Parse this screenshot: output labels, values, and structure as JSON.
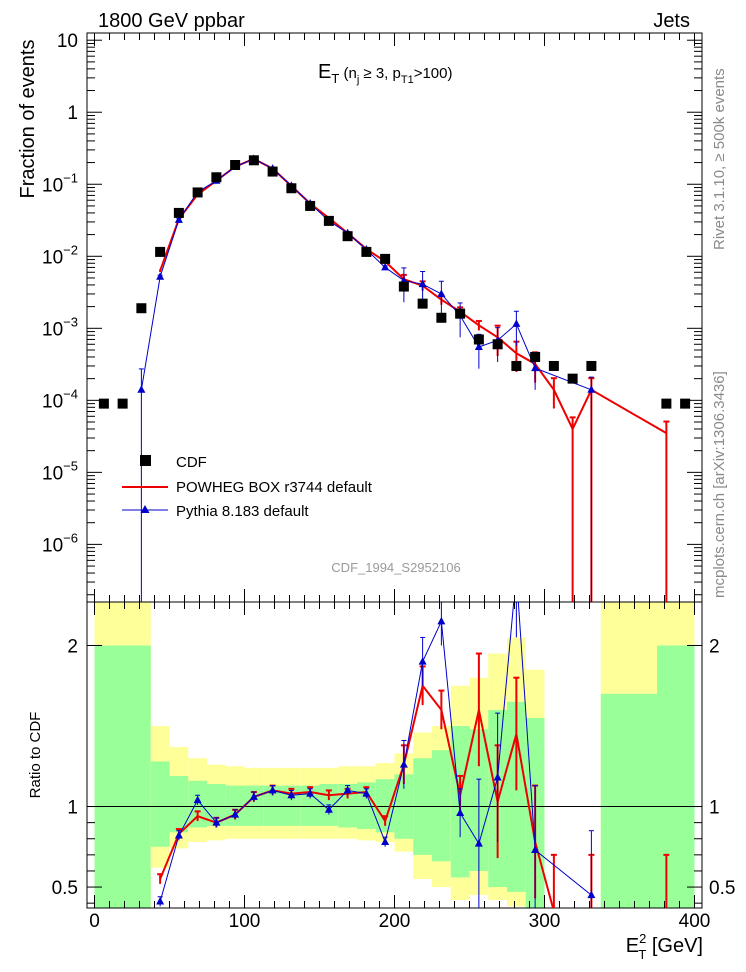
{
  "header": {
    "left": "1800 GeV ppbar",
    "right": "Jets"
  },
  "side_labels": {
    "rivet": "Rivet 3.1.10, ≥ 500k events",
    "mcplots": "mcplots.cern.ch [arXiv:1306.3436]"
  },
  "watermark": "CDF_1994_S2952106",
  "chart_data": [
    {
      "type": "scatter",
      "yscale": "log",
      "title": {
        "main": "E",
        "sub": "T",
        "cond": " (n",
        "cond_sub1": "j",
        "cond_mid": " ≥ 3, p",
        "cond_sub2": "T1",
        "cond_end": ">100)"
      },
      "ylabel": "Fraction of events",
      "xlim": [
        -5,
        405
      ],
      "ylim_log10": [
        -6.8,
        1.1
      ],
      "ytick_labels": [
        {
          "label": "10",
          "exp": "",
          "value": 10
        },
        {
          "label": "1",
          "exp": "",
          "value": 1
        },
        {
          "label": "10",
          "exp": "−1",
          "value": 0.1
        },
        {
          "label": "10",
          "exp": "−2",
          "value": 0.01
        },
        {
          "label": "10",
          "exp": "−3",
          "value": 0.001
        },
        {
          "label": "10",
          "exp": "−4",
          "value": 0.0001
        },
        {
          "label": "10",
          "exp": "−5",
          "value": 1e-05
        },
        {
          "label": "10",
          "exp": "−6",
          "value": 1e-06
        }
      ],
      "legend": [
        {
          "key": "cdf",
          "label": "CDF",
          "color": "#000000"
        },
        {
          "key": "powheg",
          "label": "POWHEG BOX r3744 default",
          "color": "#ee0000"
        },
        {
          "key": "pythia",
          "label": "Pythia 8.183 default",
          "color": "#0000cc"
        }
      ],
      "series": [
        {
          "name": "CDF",
          "key": "cdf",
          "style": "markers",
          "x": [
            6.25,
            18.75,
            31.25,
            43.75,
            56.25,
            68.75,
            81.25,
            93.75,
            106.25,
            118.75,
            131.25,
            143.75,
            156.25,
            168.75,
            181.25,
            193.75,
            206.25,
            218.75,
            231.25,
            243.75,
            256.25,
            268.75,
            281.25,
            293.75,
            306.25,
            318.75,
            331.25,
            381.25,
            393.75
          ],
          "y": [
            9e-05,
            9e-05,
            0.0019,
            0.0115,
            0.04,
            0.077,
            0.125,
            0.185,
            0.215,
            0.15,
            0.088,
            0.05,
            0.031,
            0.019,
            0.0115,
            0.0092,
            0.0038,
            0.0022,
            0.0014,
            0.0016,
            0.0007,
            0.0006,
            0.0003,
            0.0004,
            0.0003,
            0.0002,
            0.0003,
            9e-05,
            9e-05
          ]
        },
        {
          "name": "POWHEG BOX r3744 default",
          "key": "powheg",
          "style": "line",
          "x": [
            43.75,
            56.25,
            68.75,
            81.25,
            93.75,
            106.25,
            118.75,
            131.25,
            143.75,
            156.25,
            168.75,
            181.25,
            193.75,
            206.25,
            218.75,
            231.25,
            243.75,
            256.25,
            268.75,
            281.25,
            293.75,
            306.25,
            318.75,
            331.25,
            381.25
          ],
          "y": [
            0.0063,
            0.033,
            0.072,
            0.112,
            0.175,
            0.225,
            0.165,
            0.095,
            0.054,
            0.034,
            0.021,
            0.0126,
            0.0085,
            0.0048,
            0.0039,
            0.0025,
            0.0017,
            0.0011,
            0.00075,
            0.00045,
            0.00032,
            0.00014,
            4e-05,
            0.00014,
            3.5e-05
          ]
        },
        {
          "name": "Pythia 8.183 default",
          "key": "pythia",
          "style": "line-markers",
          "x": [
            31.25,
            43.75,
            56.25,
            68.75,
            81.25,
            93.75,
            106.25,
            118.75,
            131.25,
            143.75,
            156.25,
            168.75,
            181.25,
            193.75,
            206.25,
            218.75,
            231.25,
            243.75,
            256.25,
            268.75,
            281.25,
            293.75,
            331.25
          ],
          "y": [
            0.00014,
            0.0052,
            0.032,
            0.078,
            0.112,
            0.175,
            0.225,
            0.165,
            0.095,
            0.054,
            0.031,
            0.021,
            0.0124,
            0.007,
            0.0046,
            0.0041,
            0.003,
            0.0015,
            0.00055,
            0.00068,
            0.00115,
            0.00028,
            0.00014
          ]
        }
      ]
    },
    {
      "type": "line",
      "ylabel": "Ratio to CDF",
      "xlabel": "E",
      "xlabel_sup": "2",
      "xlabel_sub": "T",
      "xlabel_unit": " [GeV]",
      "xlim": [
        -5,
        405
      ],
      "ylim": [
        0.37,
        2.27
      ],
      "reference_line": 1,
      "xtick_labels": [
        "0",
        "100",
        "200",
        "300",
        "400"
      ],
      "xtick_values": [
        0,
        100,
        200,
        300,
        400
      ],
      "ytick_labels": [
        "0.5",
        "1",
        "2"
      ],
      "ytick_values": [
        0.5,
        1,
        2
      ],
      "bands": {
        "edges": [
          0,
          25,
          37.5,
          50,
          62.5,
          75,
          87.5,
          100,
          112.5,
          125,
          137.5,
          150,
          162.5,
          175,
          187.5,
          200,
          212.5,
          225,
          237.5,
          250,
          262.5,
          275,
          287.5,
          300,
          312.5,
          325,
          337.5,
          375,
          400
        ],
        "yellow_lo": [
          0.37,
          0.37,
          0.62,
          0.74,
          0.78,
          0.79,
          0.8,
          0.8,
          0.8,
          0.8,
          0.8,
          0.8,
          0.8,
          0.79,
          0.78,
          0.72,
          0.55,
          0.5,
          0.42,
          0.45,
          0.42,
          0.38,
          0.37,
          0.37,
          0.37,
          0.37,
          0.37,
          0.37
        ],
        "yellow_hi": [
          2.27,
          2.27,
          1.5,
          1.37,
          1.3,
          1.26,
          1.25,
          1.24,
          1.24,
          1.24,
          1.24,
          1.24,
          1.25,
          1.25,
          1.27,
          1.33,
          1.46,
          1.5,
          1.75,
          1.8,
          1.95,
          2.05,
          1.85,
          2.27,
          2.27,
          2.27,
          2.27,
          2.27
        ],
        "green_lo": [
          0.37,
          0.37,
          0.75,
          0.84,
          0.87,
          0.88,
          0.88,
          0.88,
          0.88,
          0.88,
          0.88,
          0.88,
          0.87,
          0.86,
          0.84,
          0.8,
          0.7,
          0.66,
          0.56,
          0.6,
          0.5,
          0.47,
          0.37,
          0.37,
          0.37,
          0.37,
          0.37,
          0.37
        ],
        "green_hi": [
          2,
          2,
          1.28,
          1.19,
          1.16,
          1.14,
          1.13,
          1.13,
          1.13,
          1.13,
          1.13,
          1.14,
          1.14,
          1.15,
          1.17,
          1.2,
          1.3,
          1.35,
          1.5,
          1.48,
          1.6,
          1.65,
          1.55,
          1.7,
          1.7,
          1.7,
          1.7,
          2
        ],
        "gaps": [
          [
            300,
            312.5
          ],
          [
            312.5,
            325
          ],
          [
            325,
            337.5
          ]
        ]
      },
      "series": [
        {
          "name": "POWHEG BOX r3744 default",
          "key": "powheg",
          "x": [
            43.75,
            56.25,
            68.75,
            81.25,
            93.75,
            106.25,
            118.75,
            131.25,
            143.75,
            156.25,
            168.75,
            181.25,
            193.75,
            206.25,
            218.75,
            231.25,
            243.75,
            256.25,
            268.75,
            281.25,
            293.75,
            306.25,
            331.25,
            381.25
          ],
          "y": [
            0.55,
            0.83,
            0.94,
            0.9,
            0.95,
            1.06,
            1.1,
            1.08,
            1.09,
            1.07,
            1.08,
            1.09,
            0.91,
            1.26,
            1.75,
            1.6,
            1.07,
            1.6,
            1.03,
            1.45,
            0.78,
            0.35,
            0.35,
            0.35
          ]
        },
        {
          "name": "Pythia 8.183 default",
          "key": "pythia",
          "x": [
            43.75,
            56.25,
            68.75,
            81.25,
            93.75,
            106.25,
            118.75,
            131.25,
            143.75,
            156.25,
            168.75,
            181.25,
            193.75,
            206.25,
            218.75,
            231.25,
            243.75,
            256.25,
            268.75,
            281.25,
            293.75,
            331.25
          ],
          "y": [
            0.41,
            0.82,
            1.04,
            0.9,
            0.95,
            1.06,
            1.1,
            1.07,
            1.08,
            0.98,
            1.1,
            1.08,
            0.78,
            1.26,
            1.9,
            2.15,
            0.96,
            0.77,
            1.18,
            2.45,
            0.73,
            0.45
          ]
        }
      ]
    }
  ]
}
